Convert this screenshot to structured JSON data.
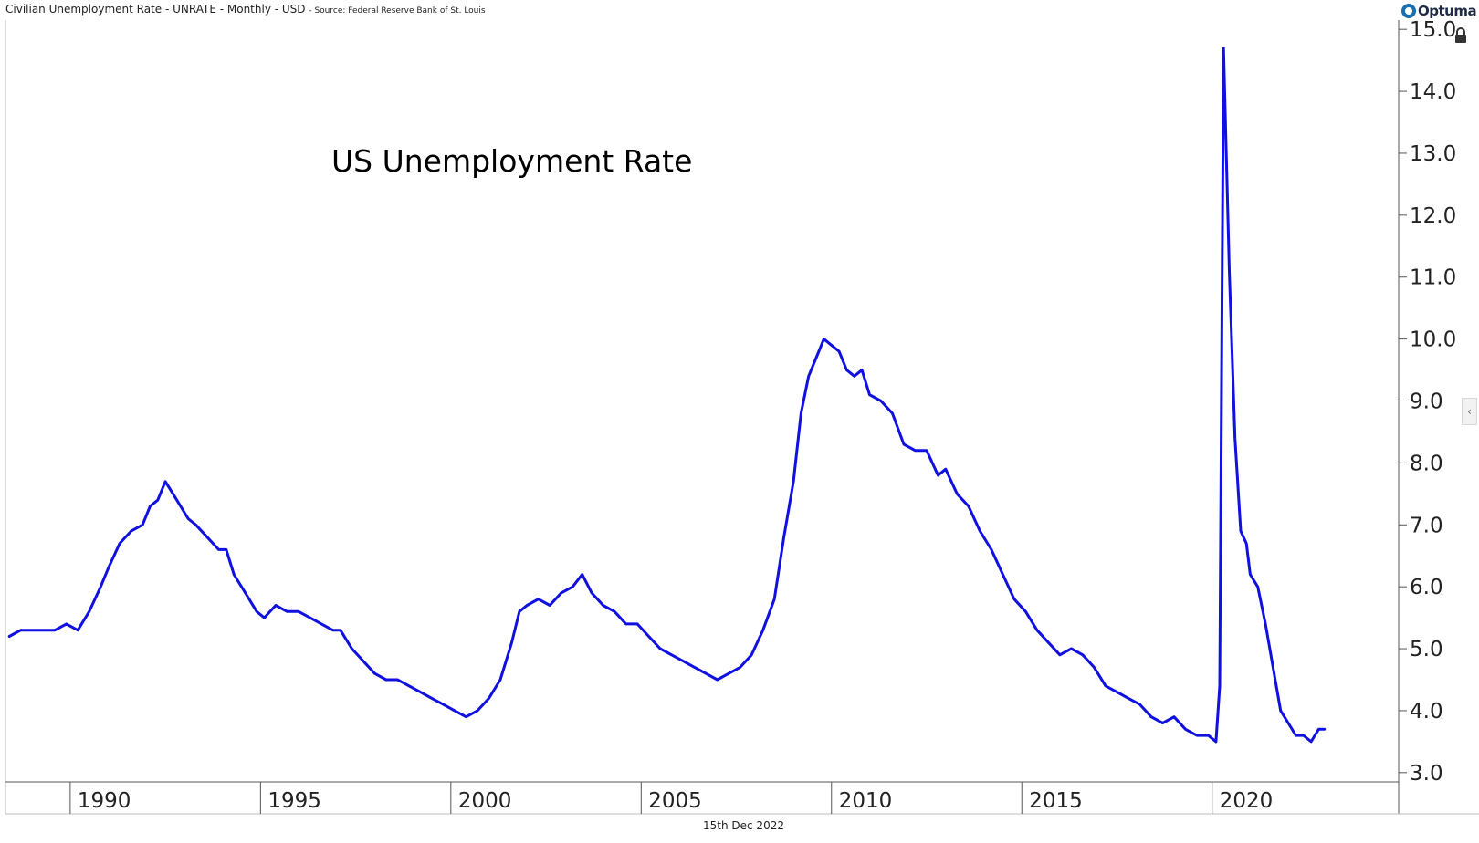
{
  "header": {
    "series_label": "Civilian Unemployment Rate - UNRATE - Monthly - USD",
    "source_label": "- Source: Federal Reserve Bank of St. Louis"
  },
  "brand": {
    "name": "Optuma"
  },
  "footer": {
    "date": "15th Dec 2022"
  },
  "colors": {
    "line": "#1010e0",
    "axis": "#555555",
    "background": "#ffffff"
  },
  "icons": {
    "lock": "lock-icon",
    "collapse": "chevron-left-icon"
  },
  "chart_data": {
    "type": "line",
    "title": "US Unemployment Rate",
    "xlim": [
      1988.3,
      2024.9
    ],
    "ylim": [
      2.85,
      15.15
    ],
    "x_ticks": [
      1990,
      1995,
      2000,
      2005,
      2010,
      2015,
      2020
    ],
    "x_tick_labels": [
      "1990",
      "1995",
      "2000",
      "2005",
      "2010",
      "2015",
      "2020"
    ],
    "y_ticks": [
      3,
      4,
      5,
      6,
      7,
      8,
      9,
      10,
      11,
      12,
      13,
      14,
      15
    ],
    "y_tick_labels": [
      "3.0",
      "4.0",
      "5.0",
      "6.0",
      "7.0",
      "8.0",
      "9.0",
      "10.0",
      "11.0",
      "12.0",
      "13.0",
      "14.0",
      "15.0"
    ],
    "grid": false,
    "series": [
      {
        "x": [
          1988.4,
          1988.7,
          1989.0,
          1989.3,
          1989.6,
          1989.9,
          1990.2,
          1990.5,
          1990.8,
          1991.0,
          1991.3,
          1991.6,
          1991.9,
          1992.1,
          1992.3,
          1992.5,
          1992.7,
          1992.9,
          1993.1,
          1993.3,
          1993.6,
          1993.9,
          1994.1,
          1994.3,
          1994.6,
          1994.9,
          1995.1,
          1995.4,
          1995.7,
          1996.0,
          1996.3,
          1996.6,
          1996.9,
          1997.1,
          1997.4,
          1997.7,
          1998.0,
          1998.3,
          1998.6,
          1998.9,
          1999.2,
          1999.5,
          1999.8,
          2000.1,
          2000.4,
          2000.7,
          2001.0,
          2001.3,
          2001.6,
          2001.8,
          2002.0,
          2002.3,
          2002.6,
          2002.9,
          2003.2,
          2003.45,
          2003.7,
          2004.0,
          2004.3,
          2004.6,
          2004.9,
          2005.2,
          2005.5,
          2005.8,
          2006.1,
          2006.4,
          2006.7,
          2007.0,
          2007.3,
          2007.6,
          2007.9,
          2008.2,
          2008.5,
          2008.75,
          2009.0,
          2009.2,
          2009.4,
          2009.6,
          2009.8,
          2010.0,
          2010.2,
          2010.4,
          2010.6,
          2010.8,
          2011.0,
          2011.3,
          2011.6,
          2011.9,
          2012.2,
          2012.5,
          2012.8,
          2013.0,
          2013.3,
          2013.6,
          2013.9,
          2014.2,
          2014.5,
          2014.8,
          2015.1,
          2015.4,
          2015.7,
          2016.0,
          2016.3,
          2016.6,
          2016.9,
          2017.2,
          2017.5,
          2017.8,
          2018.1,
          2018.4,
          2018.7,
          2019.0,
          2019.3,
          2019.6,
          2019.9,
          2020.1,
          2020.2,
          2020.3,
          2020.45,
          2020.6,
          2020.75,
          2020.9,
          2021.0,
          2021.2,
          2021.4,
          2021.6,
          2021.8,
          2022.0,
          2022.2,
          2022.4,
          2022.6,
          2022.8,
          2022.95
        ],
        "values": [
          5.2,
          5.3,
          5.3,
          5.3,
          5.3,
          5.4,
          5.3,
          5.6,
          6.0,
          6.3,
          6.7,
          6.9,
          7.0,
          7.3,
          7.4,
          7.7,
          7.5,
          7.3,
          7.1,
          7.0,
          6.8,
          6.6,
          6.6,
          6.2,
          5.9,
          5.6,
          5.5,
          5.7,
          5.6,
          5.6,
          5.5,
          5.4,
          5.3,
          5.3,
          5.0,
          4.8,
          4.6,
          4.5,
          4.5,
          4.4,
          4.3,
          4.2,
          4.1,
          4.0,
          3.9,
          4.0,
          4.2,
          4.5,
          5.1,
          5.6,
          5.7,
          5.8,
          5.7,
          5.9,
          6.0,
          6.2,
          5.9,
          5.7,
          5.6,
          5.4,
          5.4,
          5.2,
          5.0,
          4.9,
          4.8,
          4.7,
          4.6,
          4.5,
          4.6,
          4.7,
          4.9,
          5.3,
          5.8,
          6.8,
          7.7,
          8.8,
          9.4,
          9.7,
          10.0,
          9.9,
          9.8,
          9.5,
          9.4,
          9.5,
          9.1,
          9.0,
          8.8,
          8.3,
          8.2,
          8.2,
          7.8,
          7.9,
          7.5,
          7.3,
          6.9,
          6.6,
          6.2,
          5.8,
          5.6,
          5.3,
          5.1,
          4.9,
          5.0,
          4.9,
          4.7,
          4.4,
          4.3,
          4.2,
          4.1,
          3.9,
          3.8,
          3.9,
          3.7,
          3.6,
          3.6,
          3.5,
          4.4,
          14.7,
          11.1,
          8.4,
          6.9,
          6.7,
          6.2,
          6.0,
          5.4,
          4.7,
          4.0,
          3.8,
          3.6,
          3.6,
          3.5,
          3.7,
          3.7
        ]
      }
    ]
  }
}
